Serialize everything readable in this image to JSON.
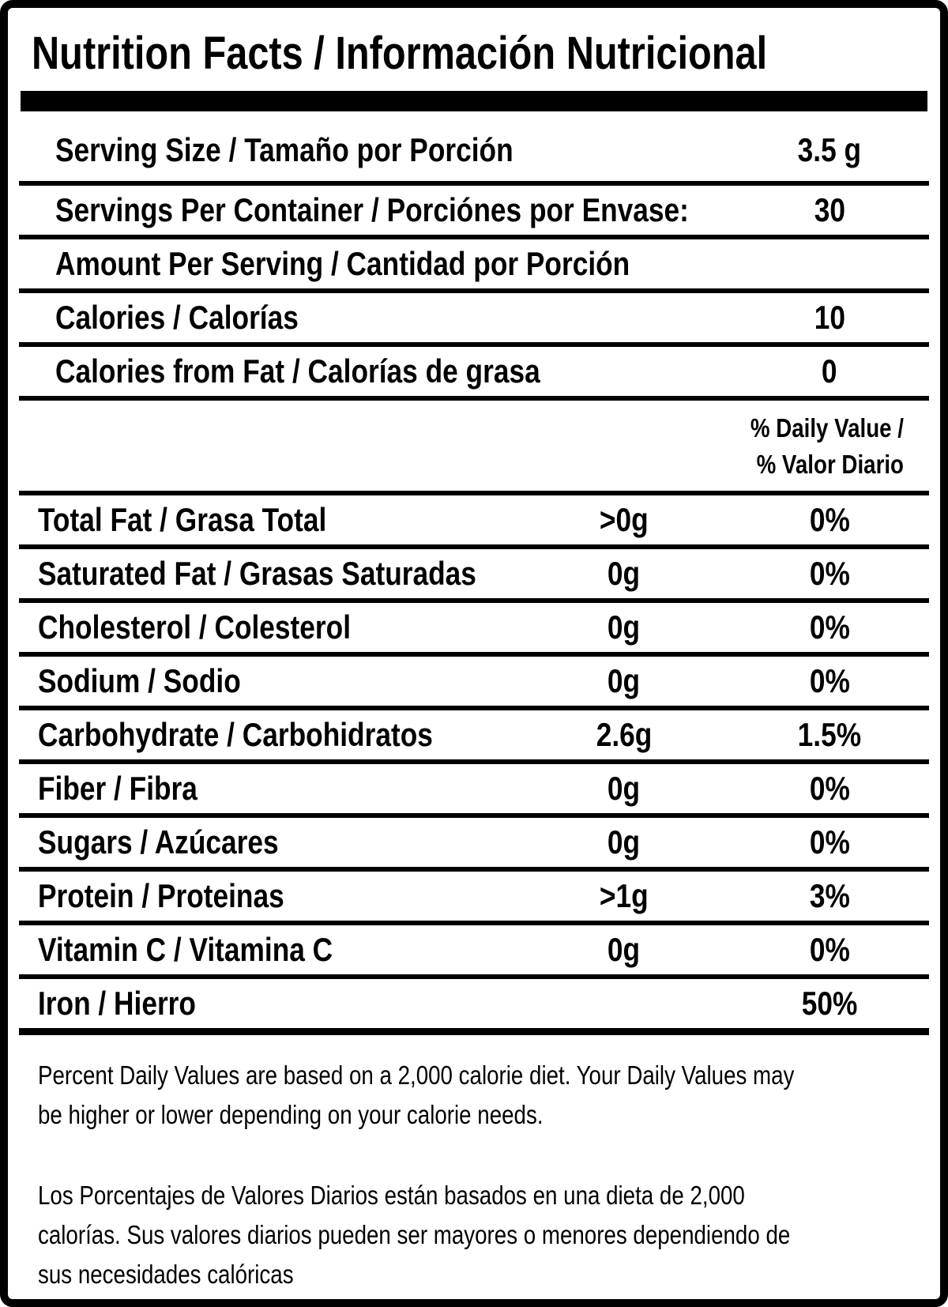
{
  "title": "Nutrition Facts / Información Nutricional",
  "serving_info": {
    "rows": [
      {
        "label": "Serving Size / Tamaño por Porción",
        "value": "3.5 g"
      },
      {
        "label": "Servings Per Container / Porciónes por Envase:",
        "value": "30"
      },
      {
        "label": "Amount Per Serving / Cantidad por Porción",
        "value": ""
      },
      {
        "label": "Calories / Calorías",
        "value": "10"
      },
      {
        "label": "Calories from Fat / Calorías de grasa",
        "value": "0"
      }
    ]
  },
  "daily_value_header": {
    "line1": "% Daily Value /",
    "line2": "% Valor Diario"
  },
  "nutrients": [
    {
      "label": "Total Fat / Grasa Total",
      "amount": ">0g",
      "percent": "0%"
    },
    {
      "label": "Saturated Fat / Grasas Saturadas",
      "amount": "0g",
      "percent": "0%"
    },
    {
      "label": "Cholesterol / Colesterol",
      "amount": "0g",
      "percent": "0%"
    },
    {
      "label": "Sodium / Sodio",
      "amount": "0g",
      "percent": "0%"
    },
    {
      "label": "Carbohydrate / Carbohidratos",
      "amount": "2.6g",
      "percent": "1.5%"
    },
    {
      "label": "Fiber / Fibra",
      "amount": "0g",
      "percent": "0%"
    },
    {
      "label": "Sugars / Azúcares",
      "amount": "0g",
      "percent": "0%"
    },
    {
      "label": "Protein / Proteinas",
      "amount": ">1g",
      "percent": "3%"
    },
    {
      "label": "Vitamin C / Vitamina C",
      "amount": "0g",
      "percent": "0%"
    },
    {
      "label": "Iron / Hierro",
      "amount": "",
      "percent": "50%"
    }
  ],
  "footnotes": {
    "english": "Percent Daily Values are based on a 2,000 calorie diet. Your Daily Values may\nbe higher or lower depending on your calorie needs.",
    "spanish": "Los Porcentajes de Valores Diarios están basados en una dieta de 2,000\ncalorías. Sus valores diarios pueden ser mayores o menores dependiendo de\nsus necesidades calóricas"
  },
  "colors": {
    "ink": "#000000",
    "background": "#ffffff"
  }
}
